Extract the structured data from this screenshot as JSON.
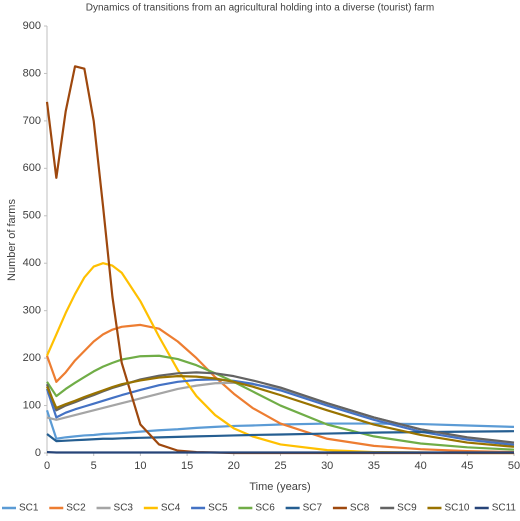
{
  "chart_data": {
    "type": "line",
    "title": "Dynamics of transitions from an agricultural holding into a diverse (tourist) farm",
    "x_label": "Time (years)",
    "y_label": "Number of farms",
    "x": [
      0,
      1,
      2,
      3,
      4,
      5,
      6,
      7,
      8,
      10,
      12,
      14,
      16,
      18,
      20,
      22,
      25,
      30,
      35,
      40,
      45,
      50
    ],
    "xlim": [
      0,
      50
    ],
    "xticks": [
      0,
      5,
      10,
      15,
      20,
      25,
      30,
      35,
      40,
      45,
      50
    ],
    "ylim": [
      0,
      900
    ],
    "yticks": [
      0,
      100,
      200,
      300,
      400,
      500,
      600,
      700,
      800,
      900
    ],
    "grid": false,
    "legend": "bottom",
    "series": [
      {
        "name": "SC1",
        "color": "#5b9bd5",
        "values": [
          90,
          30,
          33,
          35,
          37,
          38,
          40,
          41,
          42,
          45,
          48,
          50,
          53,
          55,
          57,
          58,
          60,
          62,
          62,
          61,
          58,
          55
        ]
      },
      {
        "name": "SC2",
        "color": "#ed7d31",
        "values": [
          205,
          150,
          170,
          195,
          215,
          235,
          250,
          260,
          266,
          270,
          262,
          235,
          200,
          160,
          125,
          95,
          62,
          30,
          15,
          8,
          4,
          2
        ]
      },
      {
        "name": "SC3",
        "color": "#a5a5a5",
        "values": [
          75,
          70,
          75,
          80,
          85,
          90,
          95,
          100,
          105,
          115,
          125,
          135,
          142,
          147,
          148,
          145,
          135,
          105,
          75,
          50,
          32,
          20
        ]
      },
      {
        "name": "SC4",
        "color": "#ffc000",
        "values": [
          205,
          250,
          295,
          335,
          370,
          393,
          400,
          395,
          380,
          320,
          245,
          175,
          120,
          80,
          52,
          35,
          18,
          6,
          2,
          1,
          0,
          0
        ]
      },
      {
        "name": "SC5",
        "color": "#4472c4",
        "values": [
          135,
          75,
          85,
          92,
          98,
          104,
          110,
          116,
          122,
          133,
          143,
          150,
          154,
          155,
          152,
          146,
          132,
          100,
          70,
          45,
          28,
          17
        ]
      },
      {
        "name": "SC6",
        "color": "#70ad47",
        "values": [
          150,
          120,
          135,
          148,
          160,
          172,
          182,
          190,
          197,
          204,
          205,
          198,
          185,
          168,
          150,
          130,
          100,
          60,
          35,
          20,
          12,
          7
        ]
      },
      {
        "name": "SC7",
        "color": "#255e91",
        "values": [
          40,
          25,
          26,
          27,
          28,
          29,
          30,
          30,
          31,
          32,
          33,
          34,
          35,
          36,
          37,
          38,
          39,
          41,
          43,
          44,
          45,
          46
        ]
      },
      {
        "name": "SC8",
        "color": "#9e480e",
        "values": [
          740,
          580,
          720,
          815,
          810,
          700,
          520,
          330,
          190,
          60,
          18,
          5,
          2,
          1,
          0,
          0,
          0,
          0,
          0,
          0,
          0,
          0
        ]
      },
      {
        "name": "SC9",
        "color": "#636363",
        "values": [
          145,
          90,
          100,
          107,
          115,
          122,
          130,
          137,
          143,
          155,
          163,
          168,
          170,
          168,
          162,
          153,
          138,
          105,
          75,
          50,
          33,
          22
        ]
      },
      {
        "name": "SC10",
        "color": "#997300",
        "values": [
          140,
          95,
          103,
          110,
          118,
          125,
          132,
          139,
          145,
          153,
          159,
          162,
          161,
          157,
          150,
          140,
          122,
          90,
          60,
          38,
          22,
          13
        ]
      },
      {
        "name": "SC11",
        "color": "#264478",
        "values": [
          2,
          1,
          1,
          1,
          1,
          1,
          1,
          1,
          1,
          1,
          1,
          1,
          1,
          1,
          1,
          1,
          1,
          1,
          1,
          1,
          1,
          1
        ]
      }
    ]
  }
}
